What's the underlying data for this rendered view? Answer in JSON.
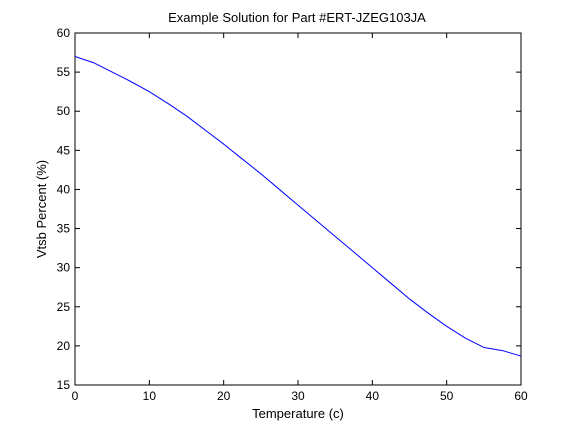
{
  "chart_data": {
    "type": "line",
    "title": "Example Solution for Part #ERT-JZEG103JA",
    "xlabel": "Temperature (c)",
    "ylabel": "Vtsb Percent (%)",
    "xlim": [
      0,
      60
    ],
    "ylim": [
      15,
      60
    ],
    "xticks": [
      "0",
      "10",
      "20",
      "30",
      "40",
      "50",
      "60"
    ],
    "yticks": [
      "15",
      "20",
      "25",
      "30",
      "35",
      "40",
      "45",
      "50",
      "55",
      "60"
    ],
    "grid": false,
    "series": [
      {
        "color": "#0000ff",
        "x": [
          0,
          2.5,
          5,
          7.5,
          10,
          12.5,
          15,
          17.5,
          20,
          22.5,
          25,
          27.5,
          30,
          32.5,
          35,
          37.5,
          40,
          42.5,
          45,
          47.5,
          50,
          52.5,
          55,
          57.5,
          60
        ],
        "y": [
          57.0,
          56.2,
          55.0,
          53.8,
          52.5,
          51.0,
          49.4,
          47.6,
          45.8,
          43.9,
          42.0,
          40.0,
          38.0,
          36.0,
          34.0,
          32.0,
          30.0,
          28.0,
          26.0,
          24.2,
          22.5,
          21.0,
          19.8,
          19.4,
          18.7
        ]
      }
    ]
  }
}
